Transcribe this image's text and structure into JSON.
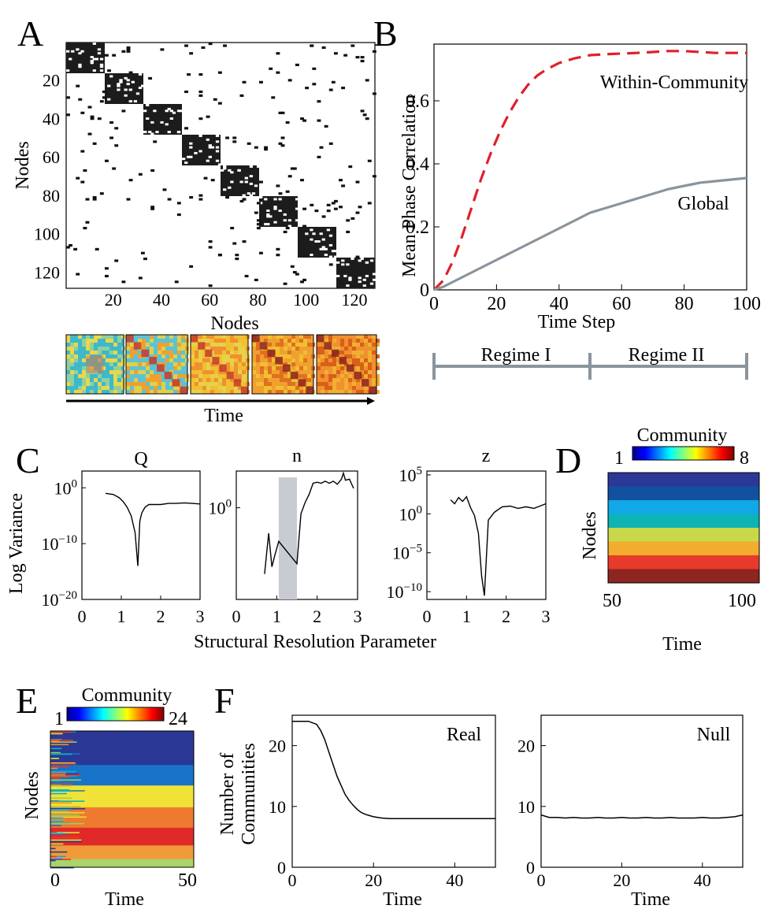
{
  "colors": {
    "within_community": "#e0202b",
    "global": "#8a949c",
    "regime_bar": "#8a949c",
    "shaded_region": "#c8ccd2",
    "community_palette": [
      "#2b3896",
      "#12519f",
      "#10a8e6",
      "#0cb4b6",
      "#c8d84a",
      "#f2ac2e",
      "#e83a2a",
      "#8d2520"
    ]
  },
  "panel_labels": {
    "a": "A",
    "b": "B",
    "c": "C",
    "d": "D",
    "e": "E",
    "f": "F"
  },
  "panel_a": {
    "xlabel": "Nodes",
    "ylabel": "Nodes",
    "time_label": "Time",
    "xticks": [
      "20",
      "40",
      "60",
      "80",
      "100",
      "120"
    ],
    "yticks": [
      "20",
      "40",
      "60",
      "80",
      "100",
      "120"
    ],
    "n_nodes": 128,
    "n_blocks": 8,
    "snapshots": 5
  },
  "panel_b": {
    "regime1": "Regime I",
    "regime2": "Regime II",
    "xticks": [
      "0",
      "20",
      "40",
      "60",
      "80",
      "100"
    ],
    "yticks": [
      "0",
      "0.2",
      "0.4",
      "0.6"
    ]
  },
  "panel_c": {
    "xlabel": "Structural Resolution Parameter",
    "ylabel": "Log Variance",
    "titles": [
      "Q",
      "n",
      "z"
    ],
    "q_ticks": [
      {
        "m": "10",
        "e": "0"
      },
      {
        "m": "10",
        "e": "−10"
      },
      {
        "m": "10",
        "e": "−20"
      }
    ],
    "n_ticks": [
      {
        "m": "10",
        "e": "0"
      }
    ],
    "z_ticks": [
      {
        "m": "10",
        "e": "5"
      },
      {
        "m": "10",
        "e": "0"
      },
      {
        "m": "10",
        "e": "−5"
      },
      {
        "m": "10",
        "e": "−10"
      }
    ],
    "xticks": [
      "0",
      "1",
      "2",
      "3"
    ]
  },
  "panel_d": {
    "title": "Community",
    "cb_min": "1",
    "cb_max": "8",
    "ylabel": "Nodes",
    "xlabel": "Time",
    "xticks": [
      "50",
      "100"
    ]
  },
  "panel_e": {
    "title": "Community",
    "cb_min": "1",
    "cb_max": "24",
    "ylabel": "Nodes",
    "xlabel": "Time",
    "xticks": [
      "0",
      "50"
    ]
  },
  "panel_f": {
    "ylabel_line1": "Number of",
    "ylabel_line2": "Communities",
    "real_label": "Real",
    "null_label": "Null",
    "xlabel": "Time",
    "yticks": [
      "0",
      "10",
      "20"
    ],
    "xticks": [
      "0",
      "20",
      "40"
    ]
  },
  "chart_data": [
    {
      "type": "line",
      "id": "B",
      "xlabel": "Time Step",
      "ylabel": "Mean Phase Correlation",
      "xlim": [
        0,
        100
      ],
      "ylim": [
        0,
        0.78
      ],
      "series": [
        {
          "name": "Within-Community",
          "style": "dashed",
          "x": [
            0,
            3,
            6,
            9,
            12,
            15,
            18,
            21,
            24,
            27,
            30,
            33,
            36,
            40,
            45,
            50,
            55,
            60,
            65,
            70,
            75,
            80,
            85,
            90,
            95,
            100
          ],
          "y": [
            0,
            0.03,
            0.09,
            0.17,
            0.26,
            0.35,
            0.43,
            0.5,
            0.56,
            0.61,
            0.65,
            0.68,
            0.7,
            0.72,
            0.735,
            0.745,
            0.748,
            0.75,
            0.752,
            0.755,
            0.758,
            0.758,
            0.755,
            0.752,
            0.752,
            0.752
          ]
        },
        {
          "name": "Global",
          "style": "solid",
          "x": [
            0,
            3,
            6,
            10,
            15,
            20,
            25,
            30,
            35,
            40,
            45,
            50,
            55,
            60,
            65,
            70,
            75,
            80,
            85,
            90,
            95,
            100
          ],
          "y": [
            0,
            0.01,
            0.025,
            0.045,
            0.07,
            0.095,
            0.12,
            0.145,
            0.17,
            0.195,
            0.22,
            0.245,
            0.26,
            0.275,
            0.29,
            0.305,
            0.32,
            0.33,
            0.34,
            0.345,
            0.35,
            0.355
          ]
        }
      ]
    },
    {
      "type": "line",
      "id": "C-Q",
      "title": "Q",
      "yscale": "log",
      "ylim_log10": [
        -20,
        3
      ],
      "xlim": [
        0,
        3
      ],
      "x": [
        0.6,
        0.8,
        0.95,
        1.05,
        1.15,
        1.25,
        1.35,
        1.42,
        1.47,
        1.52,
        1.6,
        1.7,
        1.8,
        2.0,
        2.2,
        2.4,
        2.6,
        2.8,
        3.0
      ],
      "y_log10": [
        -1,
        -1.2,
        -1.8,
        -2.5,
        -3.5,
        -5,
        -8,
        -14,
        -6,
        -4.5,
        -3.5,
        -3,
        -3,
        -3,
        -2.8,
        -2.8,
        -2.7,
        -2.8,
        -2.9
      ]
    },
    {
      "type": "line",
      "id": "C-n",
      "title": "n",
      "yscale": "log",
      "ylim_log10": [
        -9,
        3.6
      ],
      "xlim": [
        0,
        3
      ],
      "shaded": [
        1.05,
        1.5
      ],
      "x": [
        0.7,
        0.8,
        0.88,
        0.95,
        1.05,
        1.5,
        1.6,
        1.7,
        1.8,
        1.9,
        2.0,
        2.1,
        2.2,
        2.3,
        2.4,
        2.5,
        2.6,
        2.65,
        2.7,
        2.8,
        2.9
      ],
      "y_log10": [
        -6.5,
        -2.5,
        -5.8,
        -4.7,
        -3.3,
        -5.5,
        -0.6,
        0.5,
        1.3,
        2.4,
        2.5,
        2.4,
        2.6,
        2.4,
        2.6,
        2.3,
        2.8,
        3.4,
        2.7,
        2.8,
        1.9
      ]
    },
    {
      "type": "line",
      "id": "C-z",
      "title": "z",
      "yscale": "log",
      "ylim_log10": [
        -11,
        5.5
      ],
      "xlim": [
        0,
        3
      ],
      "x": [
        0.6,
        0.7,
        0.8,
        0.9,
        1.0,
        1.1,
        1.2,
        1.3,
        1.38,
        1.45,
        1.55,
        1.7,
        1.9,
        2.1,
        2.3,
        2.5,
        2.7,
        2.9,
        3.0
      ],
      "y_log10": [
        1.8,
        1.3,
        2.1,
        1.6,
        2.2,
        0.8,
        -0.2,
        -2.5,
        -8,
        -10.5,
        -0.8,
        0.2,
        0.9,
        1.0,
        0.7,
        0.9,
        0.7,
        1.1,
        1.3
      ]
    },
    {
      "type": "line",
      "id": "F-real",
      "label": "Real",
      "xlabel": "Time",
      "ylabel": "Number of Communities",
      "xlim": [
        0,
        50
      ],
      "ylim": [
        0,
        25
      ],
      "x": [
        0,
        2,
        4,
        6,
        7,
        8,
        9,
        10,
        11,
        12,
        13,
        14,
        15,
        16,
        17,
        18,
        19,
        20,
        22,
        24,
        30,
        40,
        50
      ],
      "y": [
        24,
        24,
        24,
        23.5,
        22.5,
        21,
        19,
        17,
        15,
        13.5,
        12,
        11,
        10.2,
        9.5,
        9,
        8.7,
        8.5,
        8.3,
        8.1,
        8,
        8,
        8,
        8
      ]
    },
    {
      "type": "line",
      "id": "F-null",
      "label": "Null",
      "xlabel": "Time",
      "xlim": [
        0,
        50
      ],
      "ylim": [
        0,
        25
      ],
      "x": [
        0,
        2,
        4,
        6,
        8,
        10,
        12,
        14,
        16,
        18,
        20,
        22,
        24,
        26,
        28,
        30,
        32,
        34,
        36,
        38,
        40,
        42,
        44,
        46,
        48,
        50
      ],
      "y": [
        8.6,
        8.2,
        8.2,
        8.1,
        8.2,
        8.1,
        8.1,
        8.2,
        8.1,
        8.1,
        8.2,
        8.1,
        8.1,
        8.2,
        8.1,
        8.1,
        8.2,
        8.1,
        8.1,
        8.1,
        8.2,
        8.1,
        8.1,
        8.2,
        8.3,
        8.6
      ]
    }
  ]
}
